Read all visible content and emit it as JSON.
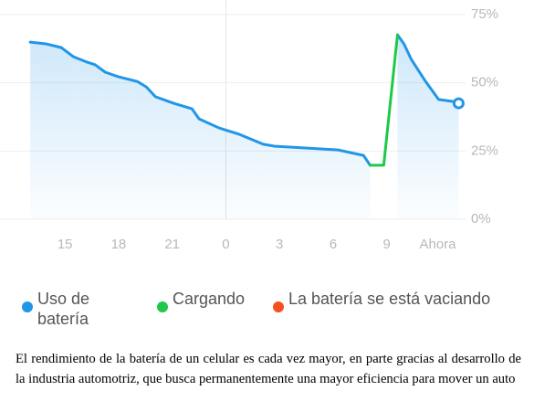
{
  "chart_data": {
    "type": "line",
    "x": [
      13.06,
      13.93,
      14.8,
      15.46,
      16.23,
      16.69,
      17.25,
      18.0,
      19.04,
      19.55,
      20.06,
      21.08,
      22.1,
      22.5,
      23.6,
      24.76,
      26.09,
      26.7,
      30.28,
      31.7,
      32.07,
      32.83,
      33.6,
      33.96,
      34.37,
      35.13,
      35.9,
      36.67,
      37.02
    ],
    "series": [
      {
        "name": "Uso de batería",
        "color": "#2196e8",
        "values": [
          64.9,
          64.3,
          62.9,
          59.6,
          57.6,
          56.6,
          53.9,
          52.2,
          50.5,
          48.5,
          44.9,
          42.5,
          40.5,
          36.8,
          33.5,
          31.1,
          27.5,
          26.8,
          25.4,
          23.4,
          19.8,
          null,
          67.6,
          64.3,
          58.6,
          50.9,
          43.9,
          43.2,
          42.5
        ]
      },
      {
        "name": "Cargando",
        "color": "#1ec94a",
        "values": [
          null,
          null,
          null,
          null,
          null,
          null,
          null,
          null,
          null,
          null,
          null,
          null,
          null,
          null,
          null,
          null,
          null,
          null,
          null,
          null,
          19.8,
          19.8,
          67.6,
          null,
          null,
          null,
          null,
          null,
          null
        ]
      },
      {
        "name": "La batería se está vaciando",
        "color": "#f4511e",
        "values": [
          null,
          null,
          null,
          null,
          null,
          null,
          null,
          null,
          null,
          null,
          null,
          null,
          null,
          null,
          null,
          null,
          null,
          null,
          null,
          null,
          null,
          null,
          null,
          null,
          null,
          null,
          null,
          null,
          null
        ]
      }
    ],
    "xlim": [
      13,
      37.1
    ],
    "xticks": [
      15,
      18,
      21,
      {
        "value": 24,
        "label": "0"
      },
      {
        "value": 27,
        "label": "3"
      },
      {
        "value": 30,
        "label": "6"
      },
      {
        "value": 33,
        "label": "9"
      },
      {
        "value": 35.85,
        "label": "Ahora"
      }
    ],
    "ylim": [
      0,
      75
    ],
    "yticks": [
      {
        "value": 0,
        "label": "0%"
      },
      {
        "value": 25,
        "label": "25%"
      },
      {
        "value": 50,
        "label": "50%"
      },
      {
        "value": 75,
        "label": "75%"
      }
    ],
    "grid": true,
    "legend": "bottom"
  },
  "caption": "El rendimiento de la batería de un celular es cada vez mayor, en parte gracias al desarrollo de la industria automotriz, que busca permanentemente una mayor eficiencia para mover un auto"
}
